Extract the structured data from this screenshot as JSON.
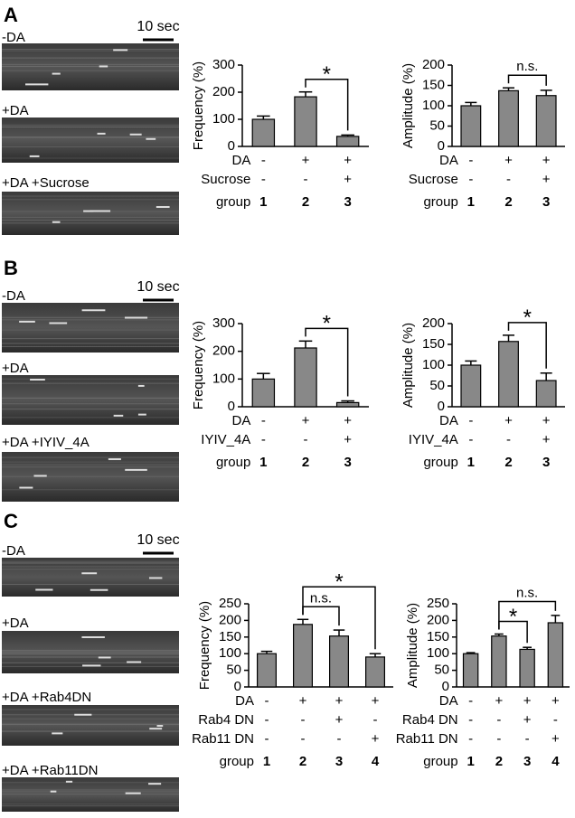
{
  "panels": [
    {
      "letter": "A",
      "scale": "10 sec",
      "images": [
        "-DA",
        "+DA",
        "+DA +Sucrose"
      ]
    },
    {
      "letter": "B",
      "scale": "10 sec",
      "images": [
        "-DA",
        "+DA",
        "+DA +IYIV_4A"
      ]
    },
    {
      "letter": "C",
      "scale": "10 sec",
      "images": [
        "-DA",
        "+DA",
        "+DA +Rab4DN",
        "+DA +Rab11DN"
      ]
    }
  ],
  "chart_data": [
    {
      "type": "bar",
      "ylabel": "Frequency (%)",
      "categories": [
        "1",
        "2",
        "3"
      ],
      "category_label": "group",
      "values": [
        100,
        183,
        37
      ],
      "errors": [
        12,
        18,
        5
      ],
      "color": "#888888",
      "ylim": [
        0,
        300
      ],
      "yticks": [
        0,
        100,
        200,
        300
      ],
      "conditions": [
        {
          "label": "DA",
          "marks": [
            "-",
            "+",
            "+"
          ]
        },
        {
          "label": "Sucrose",
          "marks": [
            "-",
            "-",
            "+"
          ]
        }
      ],
      "annotations": [
        {
          "text": "*",
          "between": [
            "2",
            "3"
          ]
        }
      ]
    },
    {
      "type": "bar",
      "ylabel": "Amplitude (%)",
      "categories": [
        "1",
        "2",
        "3"
      ],
      "category_label": "group",
      "values": [
        100,
        137,
        125
      ],
      "errors": [
        8,
        7,
        13
      ],
      "color": "#888888",
      "ylim": [
        0,
        200
      ],
      "yticks": [
        0,
        50,
        100,
        150,
        200
      ],
      "conditions": [
        {
          "label": "DA",
          "marks": [
            "-",
            "+",
            "+"
          ]
        },
        {
          "label": "Sucrose",
          "marks": [
            "-",
            "-",
            "+"
          ]
        }
      ],
      "annotations": [
        {
          "text": "n.s.",
          "between": [
            "2",
            "3"
          ]
        }
      ]
    },
    {
      "type": "bar",
      "ylabel": "Frequency (%)",
      "categories": [
        "1",
        "2",
        "3"
      ],
      "category_label": "group",
      "values": [
        100,
        212,
        15
      ],
      "errors": [
        20,
        25,
        6
      ],
      "color": "#888888",
      "ylim": [
        0,
        300
      ],
      "yticks": [
        0,
        100,
        200,
        300
      ],
      "conditions": [
        {
          "label": "DA",
          "marks": [
            "-",
            "+",
            "+"
          ]
        },
        {
          "label": "IYIV_4A",
          "marks": [
            "-",
            "-",
            "+"
          ]
        }
      ],
      "annotations": [
        {
          "text": "*",
          "between": [
            "2",
            "3"
          ]
        }
      ]
    },
    {
      "type": "bar",
      "ylabel": "Amplitude (%)",
      "categories": [
        "1",
        "2",
        "3"
      ],
      "category_label": "group",
      "values": [
        100,
        157,
        63
      ],
      "errors": [
        10,
        15,
        18
      ],
      "color": "#888888",
      "ylim": [
        0,
        200
      ],
      "yticks": [
        0,
        50,
        100,
        150,
        200
      ],
      "conditions": [
        {
          "label": "DA",
          "marks": [
            "-",
            "+",
            "+"
          ]
        },
        {
          "label": "IYIV_4A",
          "marks": [
            "-",
            "-",
            "+"
          ]
        }
      ],
      "annotations": [
        {
          "text": "*",
          "between": [
            "2",
            "3"
          ]
        }
      ]
    },
    {
      "type": "bar",
      "ylabel": "Frequency (%)",
      "categories": [
        "1",
        "2",
        "3",
        "4"
      ],
      "category_label": "group",
      "values": [
        100,
        188,
        153,
        90
      ],
      "errors": [
        7,
        15,
        18,
        10
      ],
      "color": "#888888",
      "ylim": [
        0,
        250
      ],
      "yticks": [
        0,
        50,
        100,
        150,
        200,
        250
      ],
      "conditions": [
        {
          "label": "DA",
          "marks": [
            "-",
            "+",
            "+",
            "+"
          ]
        },
        {
          "label": "Rab4 DN",
          "marks": [
            "-",
            "-",
            "+",
            "-"
          ]
        },
        {
          "label": "Rab11 DN",
          "marks": [
            "-",
            "-",
            "-",
            "+"
          ]
        }
      ],
      "annotations": [
        {
          "text": "n.s.",
          "between": [
            "2",
            "3"
          ]
        },
        {
          "text": "*",
          "between": [
            "2",
            "4"
          ]
        }
      ]
    },
    {
      "type": "bar",
      "ylabel": "Amplitude (%)",
      "categories": [
        "1",
        "2",
        "3",
        "4"
      ],
      "category_label": "group",
      "values": [
        100,
        153,
        113,
        193
      ],
      "errors": [
        3,
        6,
        6,
        22
      ],
      "color": "#888888",
      "ylim": [
        0,
        250
      ],
      "yticks": [
        0,
        50,
        100,
        150,
        200,
        250
      ],
      "conditions": [
        {
          "label": "DA",
          "marks": [
            "-",
            "+",
            "+",
            "+"
          ]
        },
        {
          "label": "Rab4 DN",
          "marks": [
            "-",
            "-",
            "+",
            "-"
          ]
        },
        {
          "label": "Rab11 DN",
          "marks": [
            "-",
            "-",
            "-",
            "+"
          ]
        }
      ],
      "annotations": [
        {
          "text": "*",
          "between": [
            "2",
            "3"
          ]
        },
        {
          "text": "n.s.",
          "between": [
            "2",
            "4"
          ]
        }
      ]
    }
  ]
}
